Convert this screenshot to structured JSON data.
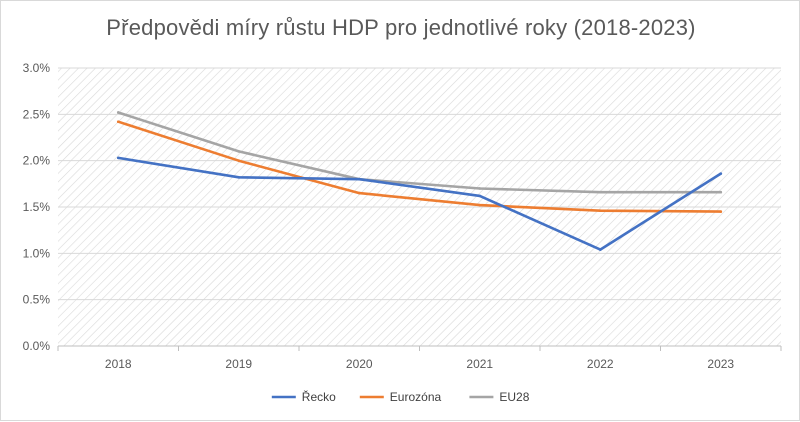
{
  "chart_data": {
    "type": "line",
    "title": "Předpovědi míry růstu HDP pro jednotlivé roky (2018-2023)",
    "categories": [
      "2018",
      "2019",
      "2020",
      "2021",
      "2022",
      "2023"
    ],
    "y_ticks": [
      "0.0%",
      "0.5%",
      "1.0%",
      "1.5%",
      "2.0%",
      "2.5%",
      "3.0%"
    ],
    "ylim": [
      0,
      3.0
    ],
    "y_unit": "%",
    "grid": "horizontal",
    "legend_position": "bottom",
    "series": [
      {
        "name": "Řecko",
        "color": "#4472c4",
        "values": [
          2.03,
          1.82,
          1.8,
          1.62,
          1.04,
          1.86
        ]
      },
      {
        "name": "Eurozóna",
        "color": "#ed7d31",
        "values": [
          2.42,
          2.0,
          1.65,
          1.52,
          1.46,
          1.45
        ]
      },
      {
        "name": "EU28",
        "color": "#a5a5a5",
        "values": [
          2.52,
          2.1,
          1.8,
          1.7,
          1.66,
          1.66
        ]
      }
    ]
  }
}
